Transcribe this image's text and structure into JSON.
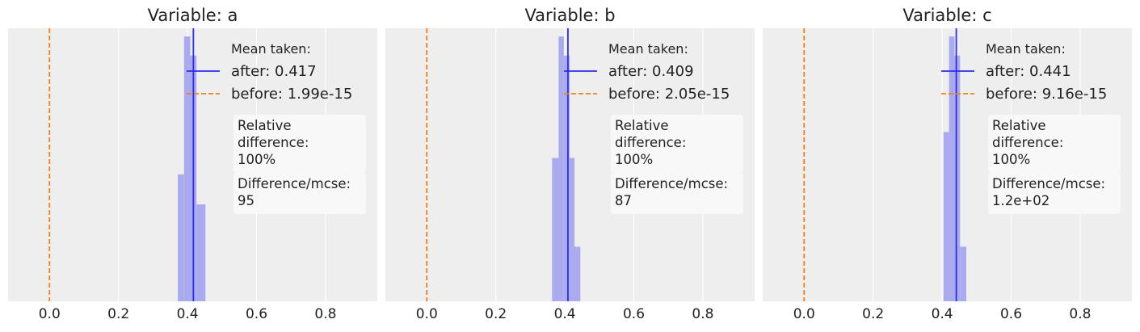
{
  "colors": {
    "axes_background": "#eeeeee",
    "grid": "#ffffff",
    "histogram": "#aaaaee",
    "after_line": "#2a2eec",
    "before_line": "#fa7c17",
    "text_box": "#f8f8f8"
  },
  "chart_data": [
    {
      "type": "bar",
      "title": "Variable: a",
      "xlim": [
        -0.12,
        0.95
      ],
      "ylim": [
        0,
        1
      ],
      "xticks": [
        0.0,
        0.2,
        0.4,
        0.6,
        0.8
      ],
      "xtick_labels": [
        "0.0",
        "0.2",
        "0.4",
        "0.6",
        "0.8"
      ],
      "grid": true,
      "show_y_axis": false,
      "histogram": {
        "bins": [
          {
            "x0": 0.372,
            "x1": 0.39,
            "height": 0.465
          },
          {
            "x0": 0.39,
            "x1": 0.408,
            "height": 0.97
          },
          {
            "x0": 0.408,
            "x1": 0.426,
            "height": 0.9
          },
          {
            "x0": 0.426,
            "x1": 0.452,
            "height": 0.355
          }
        ]
      },
      "lines": [
        {
          "name": "after",
          "x": 0.417,
          "style": "solid"
        },
        {
          "name": "before",
          "x": 0.0,
          "style": "dashed"
        }
      ],
      "legend": {
        "title": "Mean taken:",
        "entries": [
          {
            "series": "after",
            "label": "after: 0.417",
            "style": "solid"
          },
          {
            "series": "before",
            "label": "before: 1.99e-15",
            "style": "dashed"
          }
        ],
        "placement": "top-right"
      },
      "annotations": [
        {
          "lines": [
            "Relative",
            "difference:",
            "100%"
          ]
        },
        {
          "lines": [
            "Difference/mcse:",
            "95"
          ]
        }
      ]
    },
    {
      "type": "bar",
      "title": "Variable: b",
      "xlim": [
        -0.12,
        0.95
      ],
      "ylim": [
        0,
        1
      ],
      "xticks": [
        0.0,
        0.2,
        0.4,
        0.6,
        0.8
      ],
      "xtick_labels": [
        "0.0",
        "0.2",
        "0.4",
        "0.6",
        "0.8"
      ],
      "grid": true,
      "show_y_axis": false,
      "histogram": {
        "bins": [
          {
            "x0": 0.363,
            "x1": 0.382,
            "height": 0.525
          },
          {
            "x0": 0.382,
            "x1": 0.397,
            "height": 0.97
          },
          {
            "x0": 0.397,
            "x1": 0.414,
            "height": 0.9
          },
          {
            "x0": 0.414,
            "x1": 0.428,
            "height": 0.525
          },
          {
            "x0": 0.428,
            "x1": 0.445,
            "height": 0.2
          }
        ]
      },
      "lines": [
        {
          "name": "after",
          "x": 0.409,
          "style": "solid"
        },
        {
          "name": "before",
          "x": 0.0,
          "style": "dashed"
        }
      ],
      "legend": {
        "title": "Mean taken:",
        "entries": [
          {
            "series": "after",
            "label": "after: 0.409",
            "style": "solid"
          },
          {
            "series": "before",
            "label": "before: 2.05e-15",
            "style": "dashed"
          }
        ],
        "placement": "top-right"
      },
      "annotations": [
        {
          "lines": [
            "Relative",
            "difference:",
            "100%"
          ]
        },
        {
          "lines": [
            "Difference/mcse:",
            "87"
          ]
        }
      ]
    },
    {
      "type": "bar",
      "title": "Variable: c",
      "xlim": [
        -0.12,
        0.95
      ],
      "ylim": [
        0,
        1
      ],
      "xticks": [
        0.0,
        0.2,
        0.4,
        0.6,
        0.8
      ],
      "xtick_labels": [
        "0.0",
        "0.2",
        "0.4",
        "0.6",
        "0.8"
      ],
      "grid": true,
      "show_y_axis": false,
      "histogram": {
        "bins": [
          {
            "x0": 0.404,
            "x1": 0.42,
            "height": 0.62
          },
          {
            "x0": 0.42,
            "x1": 0.436,
            "height": 0.97
          },
          {
            "x0": 0.436,
            "x1": 0.452,
            "height": 0.9
          },
          {
            "x0": 0.452,
            "x1": 0.47,
            "height": 0.2
          }
        ]
      },
      "lines": [
        {
          "name": "after",
          "x": 0.441,
          "style": "solid"
        },
        {
          "name": "before",
          "x": 0.0,
          "style": "dashed"
        }
      ],
      "legend": {
        "title": "Mean taken:",
        "entries": [
          {
            "series": "after",
            "label": "after: 0.441",
            "style": "solid"
          },
          {
            "series": "before",
            "label": "before: 9.16e-15",
            "style": "dashed"
          }
        ],
        "placement": "top-right"
      },
      "annotations": [
        {
          "lines": [
            "Relative",
            "difference:",
            "100%"
          ]
        },
        {
          "lines": [
            "Difference/mcse:",
            "1.2e+02"
          ]
        }
      ]
    }
  ]
}
